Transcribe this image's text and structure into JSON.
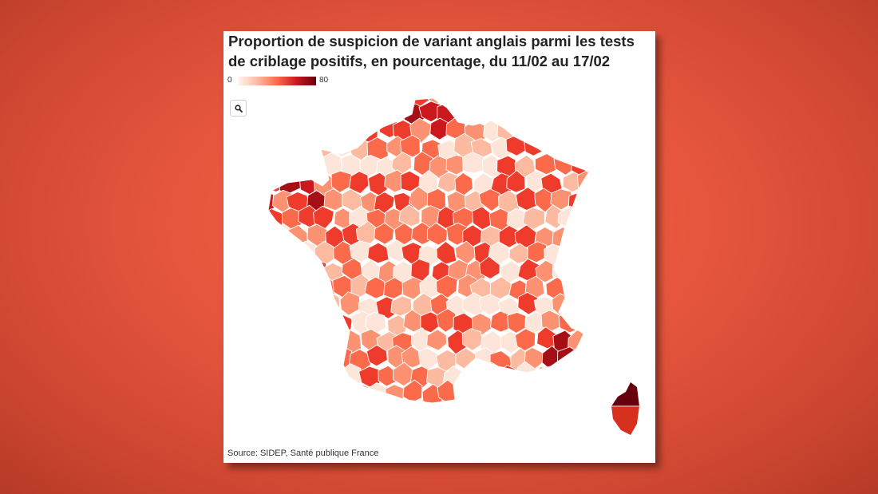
{
  "title": "Proportion de suspicion de variant anglais parmi les tests de criblage positifs, en pourcentage, du 11/02 au 17/02",
  "legend": {
    "min": "0",
    "max": "80"
  },
  "zoom_button": {
    "icon": "search-icon"
  },
  "source": "Source: SIDEP, Santé publique France",
  "colors": {
    "scale": [
      "#fff5f0",
      "#fcbba1",
      "#fb6a4a",
      "#cb181d",
      "#67000d"
    ],
    "background": "#e5553d",
    "border": "#ffffff"
  }
}
